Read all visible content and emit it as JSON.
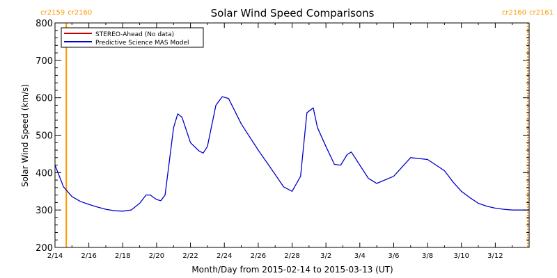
{
  "chart_data": {
    "type": "line",
    "title": "Solar Wind Speed Comparisons",
    "xlabel": "Month/Day from 2015-02-14 to 2015-03-13 (UT)",
    "ylabel": "Solar Wind Speed (km/s)",
    "xlim": [
      "2015-02-14",
      "2015-03-13"
    ],
    "ylim": [
      200,
      800
    ],
    "x_ticks": [
      {
        "date": "2015-02-14",
        "label": "2/14"
      },
      {
        "date": "2015-02-16",
        "label": "2/16"
      },
      {
        "date": "2015-02-18",
        "label": "2/18"
      },
      {
        "date": "2015-02-20",
        "label": "2/20"
      },
      {
        "date": "2015-02-22",
        "label": "2/22"
      },
      {
        "date": "2015-02-24",
        "label": "2/24"
      },
      {
        "date": "2015-02-26",
        "label": "2/26"
      },
      {
        "date": "2015-02-28",
        "label": "2/28"
      },
      {
        "date": "2015-03-02",
        "label": "3/2"
      },
      {
        "date": "2015-03-04",
        "label": "3/4"
      },
      {
        "date": "2015-03-06",
        "label": "3/6"
      },
      {
        "date": "2015-03-08",
        "label": "3/8"
      },
      {
        "date": "2015-03-10",
        "label": "3/10"
      },
      {
        "date": "2015-03-12",
        "label": "3/12"
      }
    ],
    "y_ticks": [
      200,
      300,
      400,
      500,
      600,
      700,
      800
    ],
    "grid": false,
    "legend_position": "top-left",
    "carrington_markers": [
      {
        "date": "2015-02-14 16:00",
        "left_label": "cr2159",
        "right_label": "cr2160",
        "color": "#ff9900",
        "style": "solid"
      },
      {
        "date": "2015-03-13 22:00",
        "left_label": "cr2160",
        "right_label": "cr2161",
        "color": "#ff9900",
        "style": "dotted"
      }
    ],
    "series": [
      {
        "name": "STEREO-Ahead (No data)",
        "color": "#c00000",
        "x": [],
        "y": []
      },
      {
        "name": "Predictive Science MAS Model",
        "color": "#0000cc",
        "x": [
          "2015-02-14 00:00",
          "2015-02-14 12:00",
          "2015-02-15 00:00",
          "2015-02-15 12:00",
          "2015-02-16 00:00",
          "2015-02-16 12:00",
          "2015-02-17 00:00",
          "2015-02-17 12:00",
          "2015-02-18 00:00",
          "2015-02-18 12:00",
          "2015-02-19 00:00",
          "2015-02-19 09:00",
          "2015-02-19 15:00",
          "2015-02-20 00:00",
          "2015-02-20 06:00",
          "2015-02-20 12:00",
          "2015-02-20 18:00",
          "2015-02-21 00:00",
          "2015-02-21 06:00",
          "2015-02-21 12:00",
          "2015-02-22 00:00",
          "2015-02-22 12:00",
          "2015-02-22 18:00",
          "2015-02-23 00:00",
          "2015-02-23 12:00",
          "2015-02-23 21:00",
          "2015-02-24 06:00",
          "2015-02-25 00:00",
          "2015-02-26 00:00",
          "2015-02-27 00:00",
          "2015-02-27 12:00",
          "2015-02-28 00:00",
          "2015-02-28 12:00",
          "2015-02-28 21:00",
          "2015-03-01 06:00",
          "2015-03-01 12:00",
          "2015-03-02 00:00",
          "2015-03-02 12:00",
          "2015-03-02 21:00",
          "2015-03-03 06:00",
          "2015-03-03 12:00",
          "2015-03-04 00:00",
          "2015-03-04 12:00",
          "2015-03-05 00:00",
          "2015-03-06 00:00",
          "2015-03-07 00:00",
          "2015-03-08 00:00",
          "2015-03-09 00:00",
          "2015-03-09 12:00",
          "2015-03-10 00:00",
          "2015-03-10 12:00",
          "2015-03-11 00:00",
          "2015-03-11 12:00",
          "2015-03-12 00:00",
          "2015-03-12 12:00",
          "2015-03-13 00:00",
          "2015-03-13 12:00",
          "2015-03-14 00:00"
        ],
        "y": [
          420,
          362,
          336,
          323,
          315,
          308,
          302,
          298,
          297,
          300,
          318,
          340,
          340,
          328,
          325,
          340,
          430,
          520,
          557,
          548,
          480,
          458,
          452,
          470,
          580,
          603,
          598,
          530,
          460,
          395,
          362,
          350,
          390,
          560,
          573,
          520,
          470,
          422,
          420,
          448,
          455,
          420,
          385,
          371,
          390,
          440,
          435,
          405,
          375,
          350,
          333,
          318,
          310,
          305,
          302,
          300,
          300,
          300
        ]
      }
    ]
  }
}
